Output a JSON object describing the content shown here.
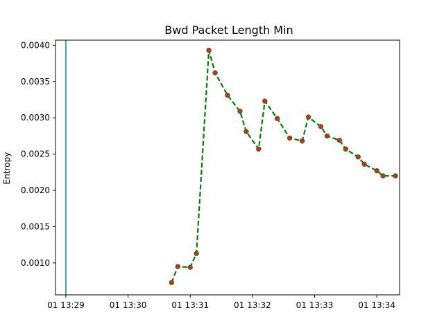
{
  "chart_data": {
    "type": "line",
    "title": "Bwd Packet Length Min",
    "xlabel": "",
    "ylabel": "Entropy",
    "x_tick_labels": [
      "01 13:29",
      "01 13:30",
      "01 13:31",
      "01 13:32",
      "01 13:33",
      "01 13:34"
    ],
    "x_ticks": [
      "13:29:00",
      "13:30:00",
      "13:31:00",
      "13:32:00",
      "13:33:00",
      "13:34:00"
    ],
    "y_tick_labels": [
      "0.0010",
      "0.0015",
      "0.0020",
      "0.0025",
      "0.0030",
      "0.0035",
      "0.0040"
    ],
    "y_ticks": [
      0.001,
      0.0015,
      0.002,
      0.0025,
      0.003,
      0.0035,
      0.004
    ],
    "xlim": [
      "13:28:50",
      "13:34:22"
    ],
    "ylim": [
      0.00056,
      0.00407
    ],
    "grid": false,
    "vertical_line": {
      "x": "13:29:00",
      "color": "#1f77b4"
    },
    "series": [
      {
        "line_color": "#008000",
        "line_style": "dashed",
        "marker_color": "#d62728",
        "x": [
          "13:30:42",
          "13:30:48",
          "13:31:00",
          "13:31:06",
          "13:31:18",
          "13:31:24",
          "13:31:36",
          "13:31:48",
          "13:31:54",
          "13:32:06",
          "13:32:12",
          "13:32:24",
          "13:32:36",
          "13:32:48",
          "13:32:54",
          "13:33:06",
          "13:33:12",
          "13:33:24",
          "13:33:30",
          "13:33:42",
          "13:33:48",
          "13:34:00",
          "13:34:06",
          "13:34:18"
        ],
        "y": [
          0.00073,
          0.00095,
          0.00094,
          0.00113,
          0.00393,
          0.00362,
          0.00331,
          0.00309,
          0.00281,
          0.00257,
          0.00323,
          0.00299,
          0.00272,
          0.00268,
          0.00301,
          0.00288,
          0.00275,
          0.00269,
          0.00257,
          0.00246,
          0.00236,
          0.00227,
          0.0022,
          0.0022
        ]
      }
    ]
  }
}
